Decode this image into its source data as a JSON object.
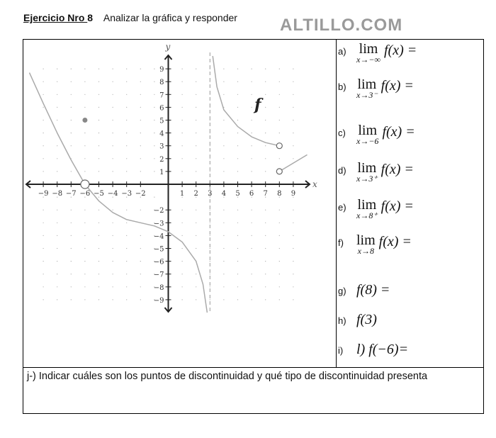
{
  "header": {
    "exercise_label": "Ejercicio Nro ",
    "exercise_number": "8",
    "instruction": "Analizar la gráfica  y responder",
    "logo": "ALTILLO.COM"
  },
  "questions": [
    {
      "label": "a)",
      "sub": "x→−∞",
      "expr": "f(x) ="
    },
    {
      "label": "b)",
      "sub": "x→3⁻",
      "expr": "f(x) ="
    },
    {
      "label": "c)",
      "sub": "x→−6",
      "expr": "f(x) ="
    },
    {
      "label": "d)",
      "sub": "x→3⁺",
      "expr": "f(x) ="
    },
    {
      "label": "e)",
      "sub": "x→8⁺",
      "expr": "f(x) ="
    },
    {
      "label": "f)",
      "sub": "x→8",
      "expr": "f(x) ="
    },
    {
      "label": "g)",
      "expr": "f(8) ="
    },
    {
      "label": "h)",
      "expr": "f(3)"
    },
    {
      "label": "i)",
      "expr": "l) f(−6)="
    }
  ],
  "lim_word": "lim",
  "question_j": "j-) Indicar cuáles son los puntos de discontinuidad y qué tipo de discontinuidad presenta",
  "chart_data": {
    "type": "line",
    "xlabel": "x",
    "ylabel": "y",
    "function_label": "f",
    "xlim": [
      -10,
      10
    ],
    "ylim": [
      -10,
      10
    ],
    "grid": "dotted",
    "x_ticks": [
      -9,
      -8,
      -7,
      -6,
      -5,
      -4,
      -3,
      -2,
      1,
      2,
      3,
      4,
      5,
      6,
      7,
      8,
      9
    ],
    "y_ticks": [
      9,
      8,
      7,
      6,
      5,
      4,
      3,
      2,
      1,
      -2,
      -3,
      -4,
      -5,
      -6,
      -7,
      -8,
      -9
    ],
    "asymptote_x": 3,
    "series": [
      {
        "points": [
          [
            -10,
            8.7
          ],
          [
            -9,
            6.3
          ],
          [
            -8,
            4
          ],
          [
            -7,
            1.9
          ],
          [
            -6,
            0
          ],
          [
            -5,
            -1.3
          ],
          [
            -4,
            -2.2
          ],
          [
            -3,
            -2.75
          ],
          [
            -2,
            -3
          ],
          [
            -1,
            -3.25
          ],
          [
            0,
            -3.7
          ],
          [
            1,
            -4.5
          ],
          [
            2,
            -6
          ],
          [
            2.5,
            -7.8
          ],
          [
            2.8,
            -10
          ]
        ]
      },
      {
        "points": [
          [
            3.2,
            10
          ],
          [
            3.5,
            7.6
          ],
          [
            4,
            5.8
          ],
          [
            5,
            4.5
          ],
          [
            6,
            3.7
          ],
          [
            7,
            3.25
          ],
          [
            8,
            3
          ]
        ]
      },
      {
        "points": [
          [
            8,
            1
          ],
          [
            10,
            2.3
          ]
        ]
      }
    ],
    "open_points": [
      [
        -6,
        0
      ],
      [
        8,
        3
      ],
      [
        8,
        1
      ]
    ],
    "filled_points": [
      [
        -6,
        5
      ]
    ]
  }
}
